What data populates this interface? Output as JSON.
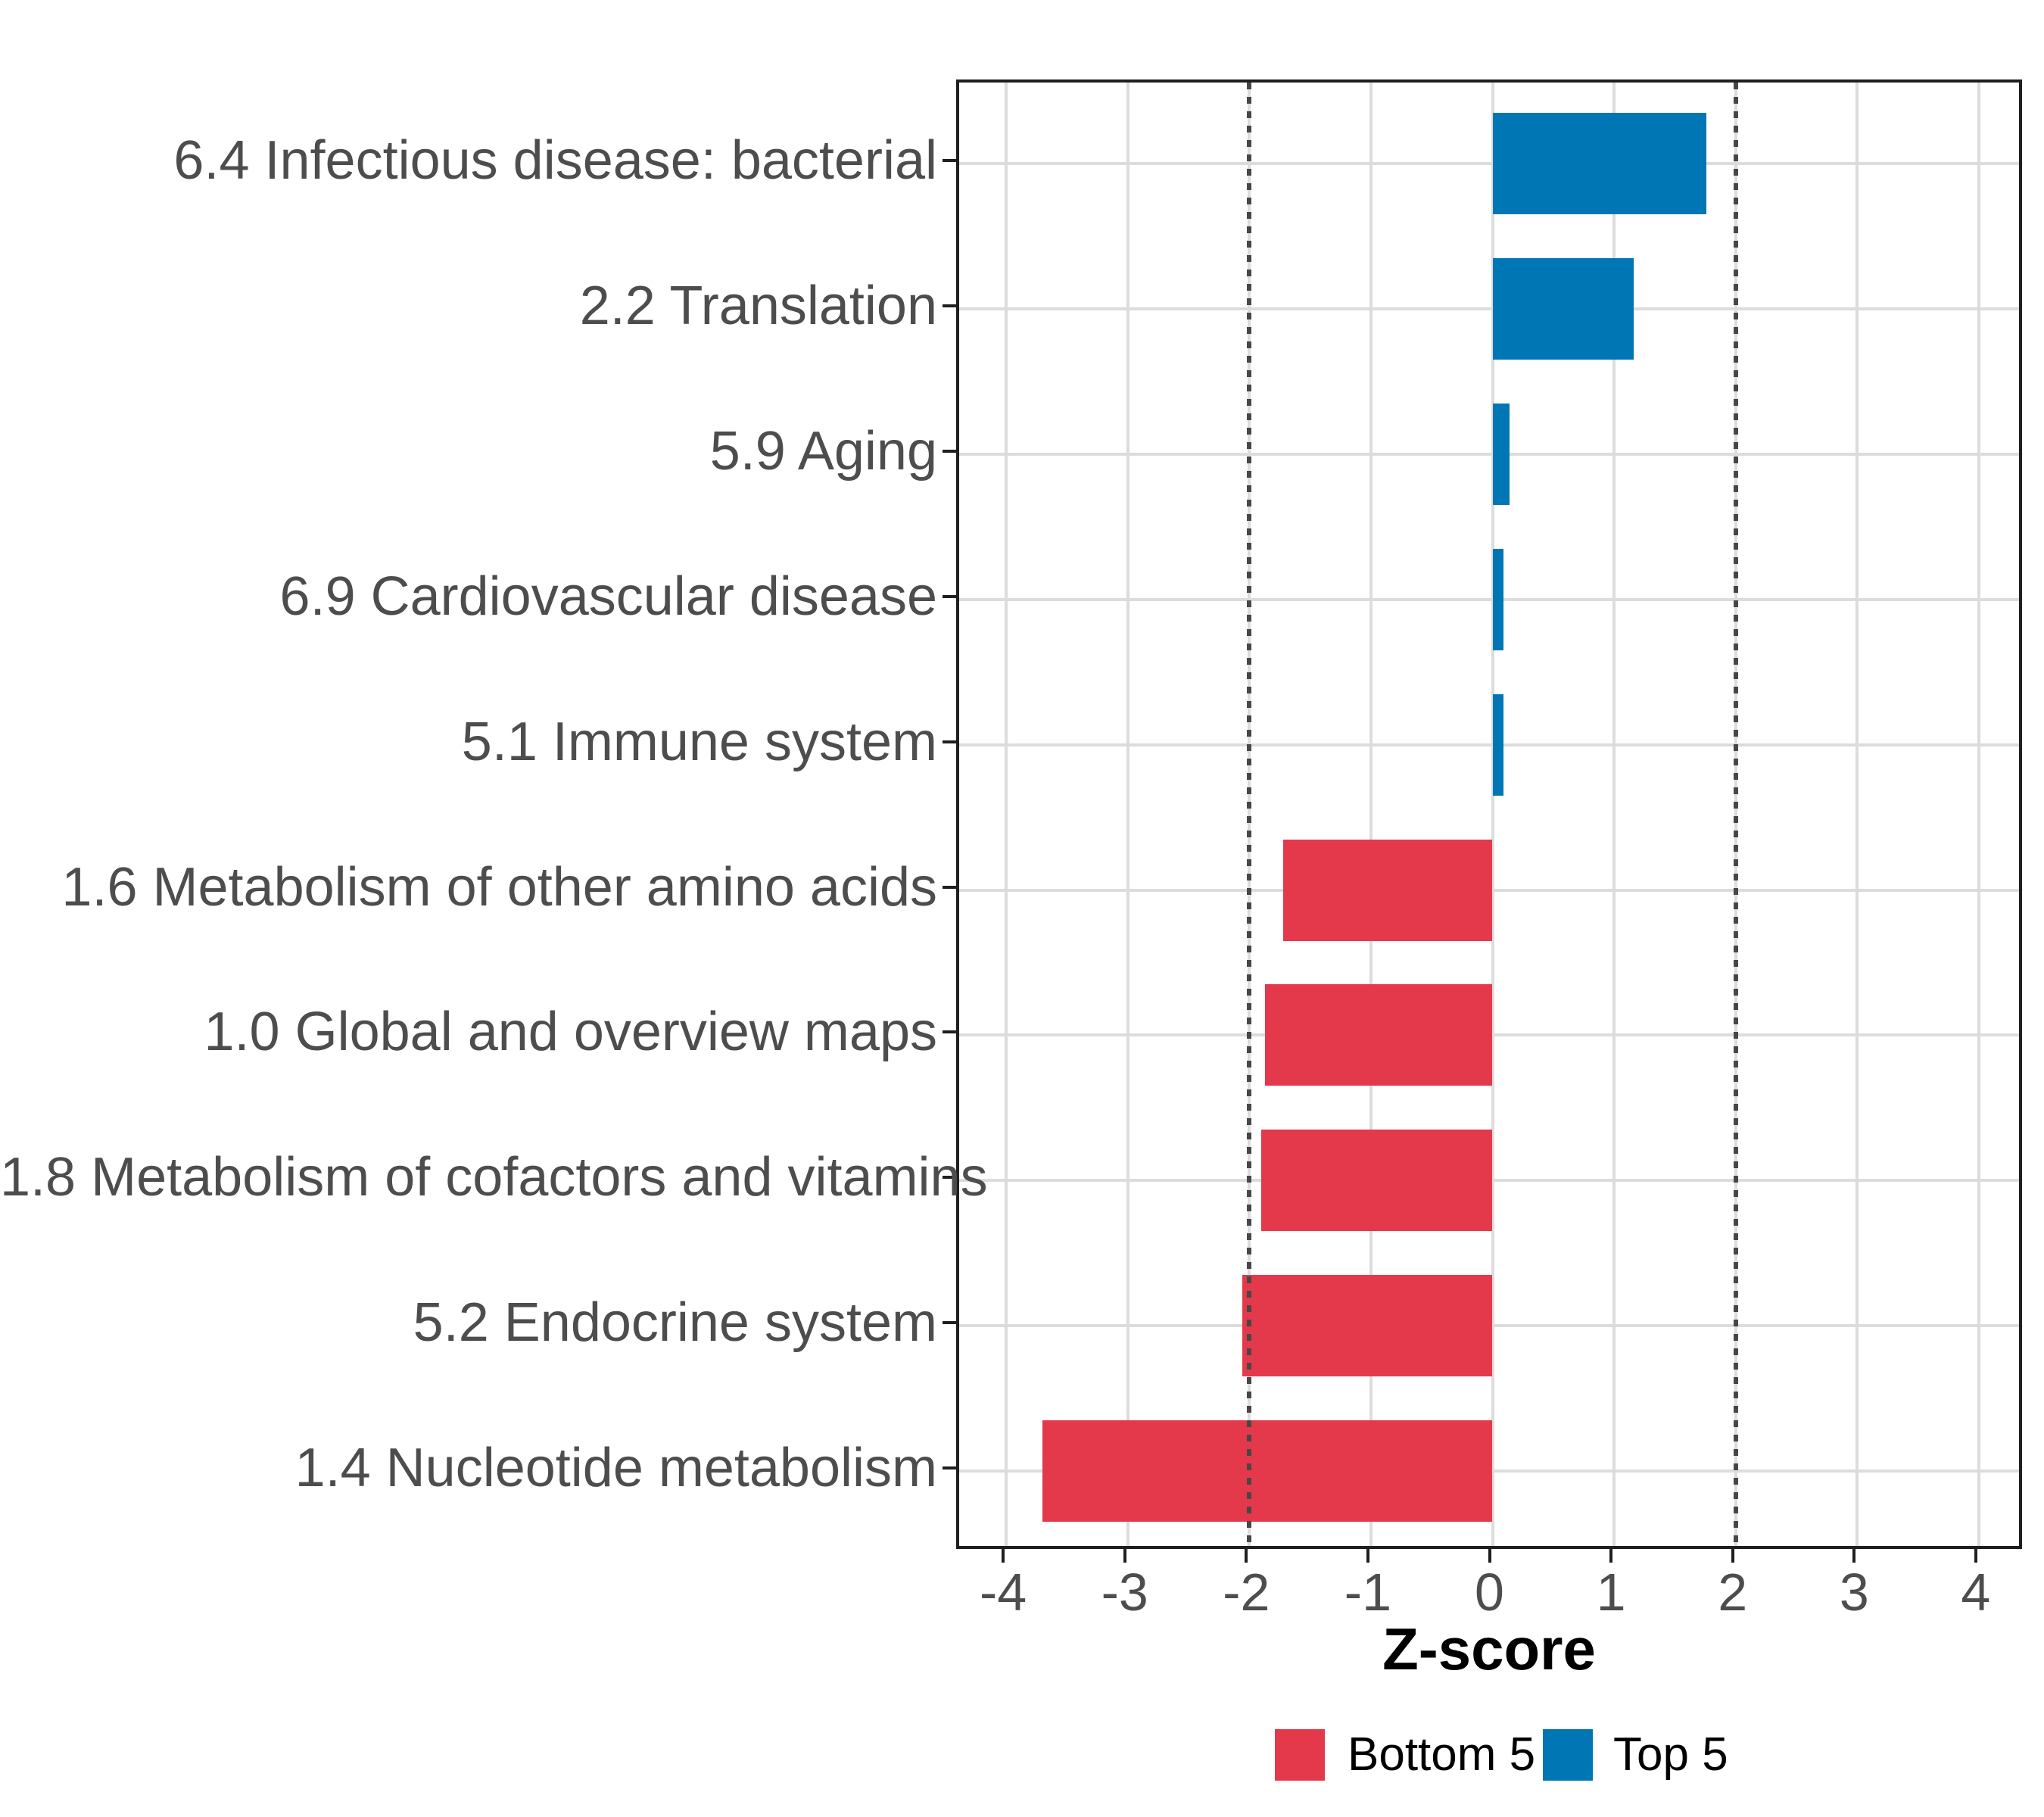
{
  "chart_data": {
    "type": "bar",
    "orientation": "horizontal",
    "title": "",
    "xlabel": "Z-score",
    "ylabel": "",
    "xlim": [
      -4.39,
      4.39
    ],
    "x_ticks": [
      -4,
      -3,
      -2,
      -1,
      0,
      1,
      2,
      3,
      4
    ],
    "x_tick_labels": [
      "-4",
      "-3",
      "-2",
      "-1",
      "0",
      "1",
      "2",
      "3",
      "4"
    ],
    "reference_lines": [
      -2,
      2
    ],
    "grid": "major-only",
    "legend_position": "bottom",
    "categories": [
      "6.4 Infectious disease: bacterial",
      "2.2 Translation",
      "5.9 Aging",
      "6.9 Cardiovascular disease",
      "5.1 Immune system",
      "1.6 Metabolism of other amino acids",
      "1.0 Global and overview maps",
      "1.8 Metabolism of cofactors and vitamins",
      "5.2 Endocrine system",
      "1.4 Nucleotide metabolism"
    ],
    "values": [
      1.76,
      1.16,
      0.14,
      0.09,
      0.09,
      -1.72,
      -1.87,
      -1.9,
      -2.06,
      -3.7
    ],
    "groups": [
      "Top 5",
      "Top 5",
      "Top 5",
      "Top 5",
      "Top 5",
      "Bottom 5",
      "Bottom 5",
      "Bottom 5",
      "Bottom 5",
      "Bottom 5"
    ],
    "series": [
      {
        "name": "Top 5",
        "color": "#0076B4"
      },
      {
        "name": "Bottom 5",
        "color": "#E4394A"
      }
    ],
    "legend": [
      {
        "label": "Bottom 5",
        "color": "#E4394A"
      },
      {
        "label": "Top 5",
        "color": "#0076B4"
      }
    ]
  },
  "colors": {
    "top5_blue": "#0076B4",
    "bottom5_red": "#E4394A",
    "axis_text": "#4d4d4d",
    "panel_border": "#1f1f1f",
    "gridline": "#dcdcdc",
    "reference_line": "#474747",
    "background": "#ffffff"
  }
}
